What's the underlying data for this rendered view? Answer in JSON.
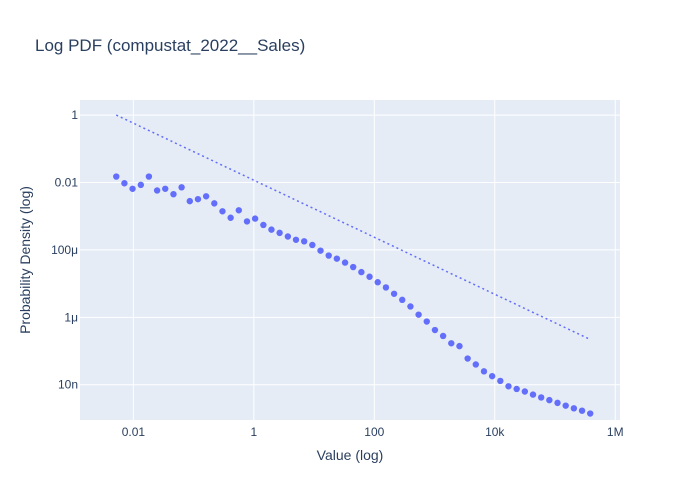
{
  "chart_data": {
    "type": "scatter",
    "title": "Log PDF (compustat_2022__Sales)",
    "xlabel": "Value (log)",
    "ylabel": "Probability Density (log)",
    "x_scale": "log",
    "y_scale": "log",
    "xlim": [
      0.0013,
      1200000
    ],
    "ylim": [
      9e-10,
      2.8
    ],
    "x_ticks": [
      {
        "value": 0.01,
        "label": "0.01"
      },
      {
        "value": 1,
        "label": "1"
      },
      {
        "value": 100,
        "label": "100"
      },
      {
        "value": 10000,
        "label": "10k"
      },
      {
        "value": 1000000,
        "label": "1M"
      }
    ],
    "y_ticks": [
      {
        "value": 1,
        "label": "1"
      },
      {
        "value": 0.01,
        "label": "0.01"
      },
      {
        "value": 0.0001,
        "label": "100μ"
      },
      {
        "value": 1e-06,
        "label": "1μ"
      },
      {
        "value": 1e-08,
        "label": "10n"
      }
    ],
    "grid": true,
    "colors": {
      "plot_bg": "#e5ecf6",
      "grid": "#ffffff",
      "marker": "#636efa",
      "text": "#2a3f5f"
    },
    "series": [
      {
        "mode": "markers",
        "x": [
          0.0052,
          0.0071,
          0.0097,
          0.0133,
          0.0181,
          0.0248,
          0.0338,
          0.0463,
          0.0632,
          0.0864,
          0.1181,
          0.1614,
          0.2206,
          0.3015,
          0.412,
          0.563,
          0.77,
          1.05,
          1.44,
          1.96,
          2.68,
          3.67,
          5.01,
          6.85,
          9.36,
          12.8,
          17.5,
          23.9,
          32.7,
          44.6,
          61.0,
          83.4,
          114,
          156,
          213,
          291,
          398,
          544,
          743,
          1016,
          1388,
          1897,
          2593,
          3544,
          4843,
          6619,
          9047,
          12364,
          16898,
          23096,
          31565,
          43140,
          58962,
          80585,
          110138,
          150530,
          205728,
          281170,
          384283
        ],
        "y": [
          0.015,
          0.0095,
          0.0065,
          0.0085,
          0.015,
          0.0058,
          0.0065,
          0.0045,
          0.0072,
          0.0028,
          0.0032,
          0.0039,
          0.0024,
          0.0014,
          0.0009,
          0.0015,
          0.0007,
          0.00085,
          0.00055,
          0.0004,
          0.00032,
          0.00025,
          0.0002,
          0.00018,
          0.00014,
          9.5e-05,
          6.8e-05,
          5.5e-05,
          4.2e-05,
          3.1e-05,
          2.2e-05,
          1.6e-05,
          1.1e-05,
          7.7e-06,
          5e-06,
          3.3e-06,
          2.1e-06,
          1.2e-06,
          7.5e-07,
          4.2e-07,
          2.8e-07,
          1.7e-07,
          1.4e-07,
          6e-08,
          4e-08,
          2.5e-08,
          1.8e-08,
          1.3e-08,
          9e-09,
          7.5e-09,
          6.3e-09,
          5.1e-09,
          4.2e-09,
          3.5e-09,
          2.9e-09,
          2.4e-09,
          2e-09,
          1.7e-09,
          1.4e-09
        ]
      },
      {
        "mode": "dotted-line",
        "x": [
          0.0052,
          385000
        ],
        "y": [
          1.0,
          2.2e-07
        ]
      }
    ]
  }
}
